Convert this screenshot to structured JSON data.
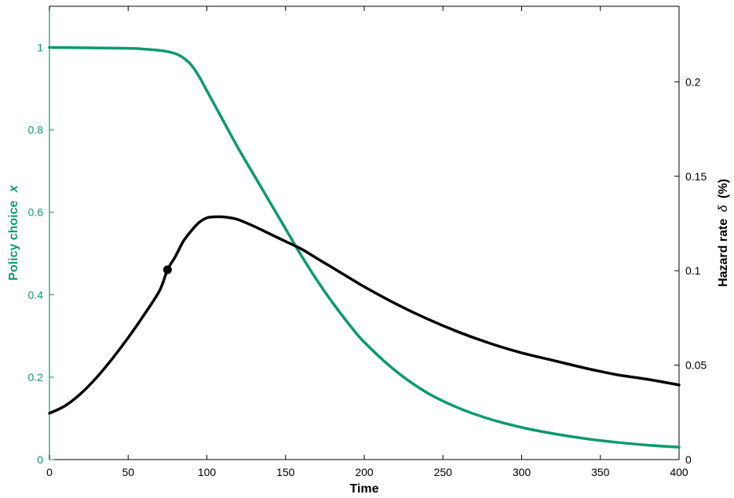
{
  "colors": {
    "left_axis": "#0a9a6f",
    "right_axis": "#000000",
    "policy_line": "#0a9a6f",
    "hazard_line": "#000000",
    "background": "#ffffff"
  },
  "chart_data": {
    "type": "line",
    "xlabel": "Time",
    "ylabel_left": "Policy choice",
    "ylabel_left_symbol": "x",
    "ylabel_right": "Hazard rate",
    "ylabel_right_symbol": "δ",
    "ylabel_right_unit": "(%)",
    "xlim": [
      0,
      400
    ],
    "ylim_left": [
      0,
      1.1
    ],
    "ylim_right": [
      0,
      0.24
    ],
    "xticks": [
      "0",
      "50",
      "100",
      "150",
      "200",
      "250",
      "300",
      "350",
      "400"
    ],
    "yticks_left": [
      "0",
      "0.2",
      "0.4",
      "0.6",
      "0.8",
      "1"
    ],
    "yticks_right": [
      "0",
      "0.05",
      "0.1",
      "0.15",
      "0.2"
    ],
    "grid": false,
    "legend": "none",
    "series": [
      {
        "axis": "left",
        "x": [
          0,
          50,
          60,
          70,
          75,
          80,
          85,
          90,
          95,
          100,
          110,
          120,
          130,
          140,
          150,
          160,
          170,
          180,
          190,
          200,
          220,
          240,
          260,
          280,
          300,
          320,
          340,
          360,
          380,
          400
        ],
        "values": [
          1.0,
          0.998,
          0.996,
          0.993,
          0.99,
          0.985,
          0.975,
          0.958,
          0.93,
          0.895,
          0.825,
          0.755,
          0.69,
          0.625,
          0.56,
          0.495,
          0.435,
          0.38,
          0.33,
          0.285,
          0.215,
          0.162,
          0.125,
          0.098,
          0.078,
          0.063,
          0.051,
          0.042,
          0.035,
          0.03
        ]
      },
      {
        "axis": "right",
        "x": [
          0,
          10,
          20,
          30,
          40,
          50,
          60,
          70,
          75,
          80,
          85,
          90,
          95,
          100,
          105,
          110,
          115,
          120,
          130,
          140,
          150,
          160,
          170,
          180,
          190,
          200,
          220,
          240,
          260,
          280,
          300,
          320,
          340,
          360,
          380,
          400
        ],
        "values": [
          0.0245,
          0.0285,
          0.035,
          0.0435,
          0.0535,
          0.0645,
          0.0765,
          0.0895,
          0.1005,
          0.1075,
          0.1155,
          0.121,
          0.1255,
          0.128,
          0.1285,
          0.1285,
          0.128,
          0.127,
          0.1235,
          0.1195,
          0.1155,
          0.1115,
          0.1065,
          0.1015,
          0.0965,
          0.0915,
          0.0825,
          0.0745,
          0.0675,
          0.0615,
          0.0565,
          0.0525,
          0.0485,
          0.045,
          0.0425,
          0.0395
        ]
      }
    ],
    "marker": {
      "axis": "right",
      "x": 75,
      "value": 0.1005
    }
  }
}
